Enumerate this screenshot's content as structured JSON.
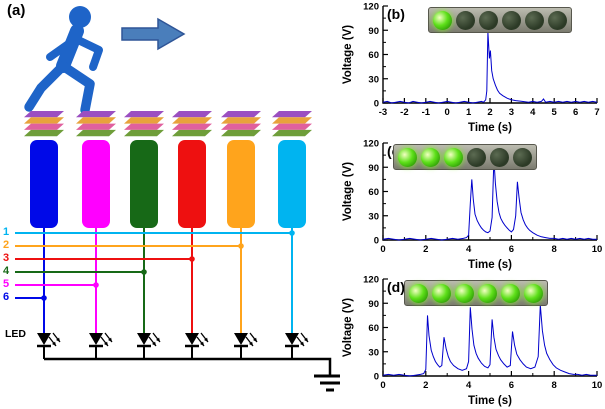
{
  "panel_a": {
    "label": "(a)",
    "led_label": "LED",
    "person_color": "#1e64c8",
    "arrow_color": "#4a7ebb",
    "arrow_edge_color": "#2f5597",
    "stack_layer_colors": [
      "#9b4fc1",
      "#e8a23c",
      "#e0609e",
      "#6f9e3a"
    ],
    "device_colors": [
      "#0009e8",
      "#ff00ff",
      "#176917",
      "#ee1010",
      "#ffa41c",
      "#00b4f0"
    ],
    "wires": [
      {
        "number": "1",
        "color": "#00b4f0"
      },
      {
        "number": "2",
        "color": "#ffa41c"
      },
      {
        "number": "3",
        "color": "#ee1010"
      },
      {
        "number": "4",
        "color": "#176917"
      },
      {
        "number": "5",
        "color": "#ff00ff"
      },
      {
        "number": "6",
        "color": "#0009e8"
      }
    ]
  },
  "chart_data": [
    {
      "type": "line",
      "label": "(b)",
      "xlabel": "Time (s)",
      "ylabel": "Voltage (V)",
      "xlim": [
        -3,
        7
      ],
      "ylim": [
        0,
        120
      ],
      "xticks": [
        -3,
        -2,
        -1,
        0,
        1,
        2,
        3,
        4,
        5,
        6,
        7
      ],
      "yticks": [
        0,
        30,
        60,
        90,
        120
      ],
      "yminor": [
        15,
        45,
        75,
        105
      ],
      "line_color": "#0000cc",
      "led_on_color": "#5ee01a",
      "led_off_color": "#2c3a26",
      "leds": [
        1,
        0,
        0,
        0,
        0,
        0
      ],
      "points": [
        [
          -3,
          1
        ],
        [
          -2.8,
          2
        ],
        [
          -2.6,
          0
        ],
        [
          -2.4,
          1
        ],
        [
          -2.2,
          2
        ],
        [
          -2,
          1
        ],
        [
          -1.8,
          0
        ],
        [
          -1.6,
          2
        ],
        [
          -1.4,
          1
        ],
        [
          -1.2,
          0
        ],
        [
          -1,
          1
        ],
        [
          -0.8,
          2
        ],
        [
          -0.6,
          1
        ],
        [
          -0.4,
          0
        ],
        [
          -0.2,
          1
        ],
        [
          0,
          2
        ],
        [
          0.2,
          1
        ],
        [
          0.4,
          0
        ],
        [
          0.6,
          1
        ],
        [
          0.8,
          2
        ],
        [
          1,
          1
        ],
        [
          1.2,
          0
        ],
        [
          1.4,
          1
        ],
        [
          1.6,
          2
        ],
        [
          1.7,
          1
        ],
        [
          1.8,
          4
        ],
        [
          1.85,
          15
        ],
        [
          1.9,
          88
        ],
        [
          1.97,
          55
        ],
        [
          2.02,
          65
        ],
        [
          2.08,
          40
        ],
        [
          2.15,
          30
        ],
        [
          2.25,
          22
        ],
        [
          2.35,
          16
        ],
        [
          2.45,
          12
        ],
        [
          2.6,
          9
        ],
        [
          2.8,
          6
        ],
        [
          3,
          4
        ],
        [
          3.2,
          3
        ],
        [
          3.5,
          2
        ],
        [
          3.8,
          1
        ],
        [
          4,
          2
        ],
        [
          4.2,
          1
        ],
        [
          4.4,
          2
        ],
        [
          4.5,
          5
        ],
        [
          4.6,
          1
        ],
        [
          4.8,
          2
        ],
        [
          5,
          1
        ],
        [
          5.2,
          2
        ],
        [
          5.4,
          1
        ],
        [
          5.6,
          2
        ],
        [
          5.8,
          1
        ],
        [
          6,
          2
        ],
        [
          6.2,
          1
        ],
        [
          6.4,
          2
        ],
        [
          6.6,
          1
        ],
        [
          6.8,
          2
        ],
        [
          7,
          1
        ]
      ]
    },
    {
      "type": "line",
      "label": "(c)",
      "xlabel": "Time (s)",
      "ylabel": "Voltage (V)",
      "xlim": [
        0,
        10
      ],
      "ylim": [
        0,
        120
      ],
      "xticks": [
        0,
        2,
        4,
        6,
        8,
        10
      ],
      "xminor": [
        1,
        3,
        5,
        7,
        9
      ],
      "yticks": [
        0,
        30,
        60,
        90,
        120
      ],
      "yminor": [
        15,
        45,
        75,
        105
      ],
      "line_color": "#0000cc",
      "led_on_color": "#5ee01a",
      "led_off_color": "#2c3a26",
      "leds": [
        1,
        1,
        1,
        0,
        0,
        0
      ],
      "points": [
        [
          0,
          1
        ],
        [
          0.25,
          2
        ],
        [
          0.5,
          1
        ],
        [
          0.75,
          0
        ],
        [
          1,
          1
        ],
        [
          1.25,
          2
        ],
        [
          1.5,
          1
        ],
        [
          1.75,
          0
        ],
        [
          2,
          1
        ],
        [
          2.25,
          2
        ],
        [
          2.5,
          1
        ],
        [
          2.75,
          0
        ],
        [
          3,
          1
        ],
        [
          3.25,
          2
        ],
        [
          3.5,
          1
        ],
        [
          3.75,
          2
        ],
        [
          3.9,
          3
        ],
        [
          4,
          6
        ],
        [
          4.08,
          45
        ],
        [
          4.15,
          75
        ],
        [
          4.22,
          50
        ],
        [
          4.3,
          32
        ],
        [
          4.4,
          24
        ],
        [
          4.5,
          19
        ],
        [
          4.6,
          15
        ],
        [
          4.7,
          12
        ],
        [
          4.8,
          10
        ],
        [
          4.9,
          9
        ],
        [
          5,
          11
        ],
        [
          5.1,
          28
        ],
        [
          5.18,
          100
        ],
        [
          5.25,
          70
        ],
        [
          5.33,
          48
        ],
        [
          5.42,
          34
        ],
        [
          5.5,
          27
        ],
        [
          5.6,
          22
        ],
        [
          5.7,
          18
        ],
        [
          5.8,
          15
        ],
        [
          5.9,
          12
        ],
        [
          6,
          10
        ],
        [
          6.1,
          13
        ],
        [
          6.2,
          30
        ],
        [
          6.28,
          72
        ],
        [
          6.36,
          52
        ],
        [
          6.45,
          34
        ],
        [
          6.55,
          25
        ],
        [
          6.65,
          19
        ],
        [
          6.75,
          15
        ],
        [
          6.85,
          12
        ],
        [
          7,
          9
        ],
        [
          7.2,
          6
        ],
        [
          7.4,
          4
        ],
        [
          7.6,
          3
        ],
        [
          7.8,
          2
        ],
        [
          8,
          2
        ],
        [
          8.2,
          1
        ],
        [
          8.4,
          2
        ],
        [
          8.6,
          1
        ],
        [
          8.8,
          2
        ],
        [
          9,
          1
        ],
        [
          9.2,
          2
        ],
        [
          9.4,
          1
        ],
        [
          9.6,
          2
        ],
        [
          9.8,
          1
        ],
        [
          10,
          1
        ]
      ]
    },
    {
      "type": "line",
      "label": "(d)",
      "xlabel": "Time (s)",
      "ylabel": "Voltage (V)",
      "xlim": [
        0,
        10
      ],
      "ylim": [
        0,
        120
      ],
      "xticks": [
        0,
        2,
        4,
        6,
        8,
        10
      ],
      "xminor": [
        1,
        3,
        5,
        7,
        9
      ],
      "yticks": [
        0,
        30,
        60,
        90,
        120
      ],
      "yminor": [
        15,
        45,
        75,
        105
      ],
      "line_color": "#0000cc",
      "led_on_color": "#5ee01a",
      "led_off_color": "#2c3a26",
      "leds": [
        1,
        1,
        1,
        1,
        1,
        1
      ],
      "points": [
        [
          0,
          1
        ],
        [
          0.25,
          2
        ],
        [
          0.5,
          1
        ],
        [
          0.75,
          2
        ],
        [
          1,
          1
        ],
        [
          1.25,
          0
        ],
        [
          1.5,
          1
        ],
        [
          1.75,
          2
        ],
        [
          1.9,
          3
        ],
        [
          2,
          8
        ],
        [
          2.08,
          75
        ],
        [
          2.15,
          50
        ],
        [
          2.25,
          32
        ],
        [
          2.35,
          24
        ],
        [
          2.45,
          18
        ],
        [
          2.55,
          14
        ],
        [
          2.65,
          11
        ],
        [
          2.75,
          13
        ],
        [
          2.85,
          48
        ],
        [
          2.95,
          34
        ],
        [
          3.05,
          24
        ],
        [
          3.15,
          18
        ],
        [
          3.3,
          13
        ],
        [
          3.5,
          9
        ],
        [
          3.7,
          7
        ],
        [
          3.9,
          9
        ],
        [
          4,
          18
        ],
        [
          4.08,
          85
        ],
        [
          4.16,
          58
        ],
        [
          4.25,
          38
        ],
        [
          4.35,
          28
        ],
        [
          4.45,
          22
        ],
        [
          4.6,
          16
        ],
        [
          4.75,
          12
        ],
        [
          4.9,
          10
        ],
        [
          5,
          14
        ],
        [
          5.1,
          70
        ],
        [
          5.18,
          48
        ],
        [
          5.28,
          33
        ],
        [
          5.4,
          25
        ],
        [
          5.5,
          20
        ],
        [
          5.65,
          15
        ],
        [
          5.8,
          11
        ],
        [
          5.95,
          13
        ],
        [
          6.05,
          55
        ],
        [
          6.15,
          38
        ],
        [
          6.25,
          27
        ],
        [
          6.4,
          20
        ],
        [
          6.55,
          15
        ],
        [
          6.7,
          11
        ],
        [
          6.9,
          9
        ],
        [
          7.1,
          11
        ],
        [
          7.25,
          24
        ],
        [
          7.35,
          88
        ],
        [
          7.45,
          56
        ],
        [
          7.55,
          38
        ],
        [
          7.65,
          28
        ],
        [
          7.8,
          20
        ],
        [
          7.95,
          14
        ],
        [
          8.1,
          10
        ],
        [
          8.3,
          7
        ],
        [
          8.5,
          5
        ],
        [
          8.7,
          3
        ],
        [
          8.9,
          2
        ],
        [
          9.1,
          2
        ],
        [
          9.3,
          1
        ],
        [
          9.5,
          2
        ],
        [
          9.7,
          1
        ],
        [
          10,
          1
        ]
      ]
    }
  ]
}
